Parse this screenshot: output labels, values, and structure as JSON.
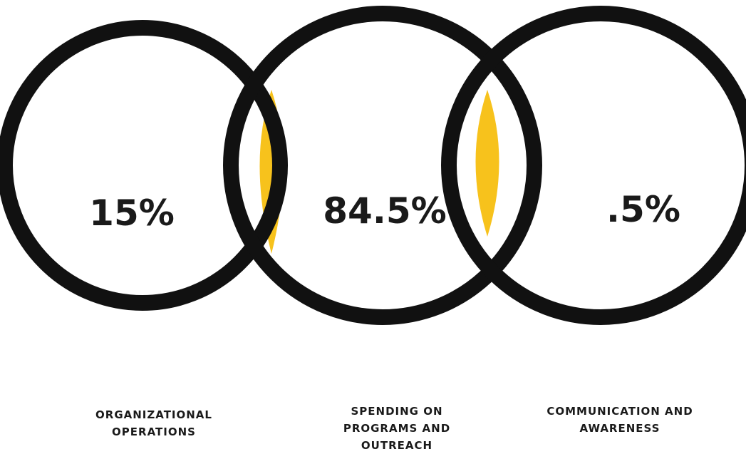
{
  "diagram": {
    "ring_color": "#111111",
    "overlap_color": "#F7C21C",
    "sections": [
      {
        "value": "15%",
        "label": "ORGANIZATIONAL\nOPERATIONS"
      },
      {
        "value": "84.5%",
        "label": "SPENDING ON\nPROGRAMS AND\nOUTREACH"
      },
      {
        "value": ".5%",
        "label": "COMMUNICATION AND\nAWARENESS"
      }
    ]
  }
}
